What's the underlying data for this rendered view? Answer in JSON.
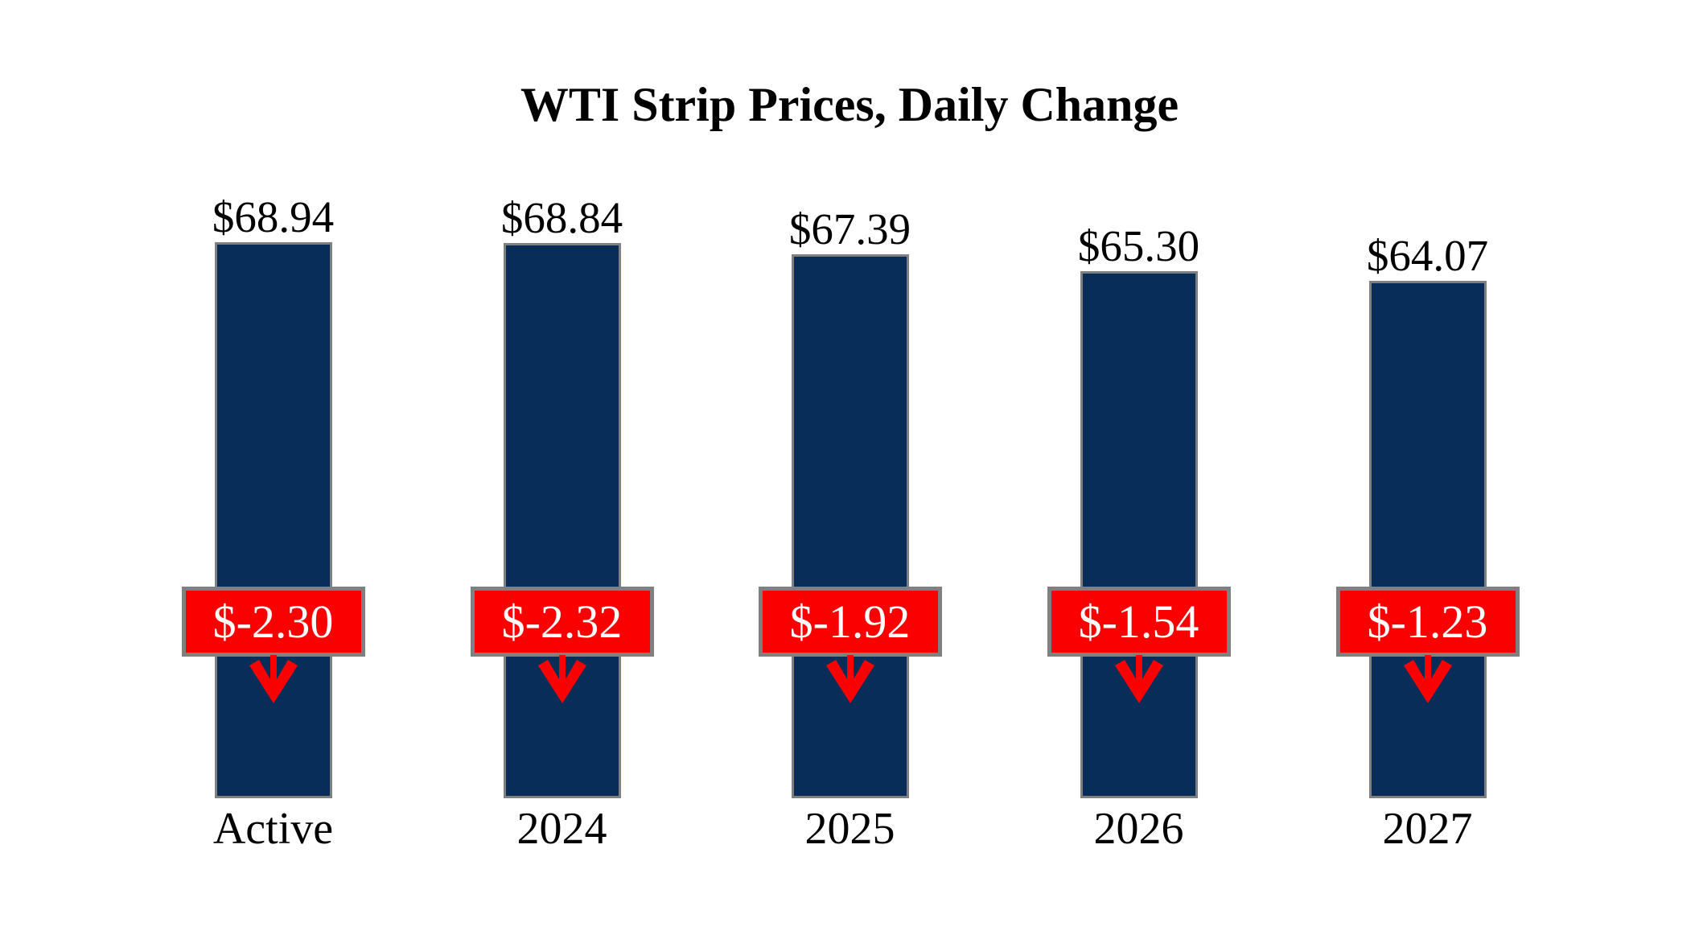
{
  "chart_data": {
    "type": "bar",
    "title": "WTI Strip Prices, Daily Change",
    "categories": [
      "Active",
      "2024",
      "2025",
      "2026",
      "2027"
    ],
    "series": [
      {
        "name": "WTI Strip Price",
        "values": [
          68.94,
          68.84,
          67.39,
          65.3,
          64.07
        ],
        "labels": [
          "$68.94",
          "$68.84",
          "$67.39",
          "$65.30",
          "$64.07"
        ]
      },
      {
        "name": "Daily Change",
        "values": [
          -2.3,
          -2.32,
          -1.92,
          -1.54,
          -1.23
        ],
        "labels": [
          "$-2.30",
          "$-2.32",
          "$-1.92",
          "$-1.54",
          "$-1.23"
        ]
      }
    ],
    "ylim": [
      0,
      72
    ],
    "grid": false,
    "legend_position": "none",
    "axes_visible": false,
    "bar_value_label_position": "above-bar",
    "change_label_position": "overlaid-badge-with-down-arrow"
  },
  "colors": {
    "background": "#FFFFFF",
    "title_text": "#000000",
    "label_text": "#000000",
    "bar_fill": "#082D58",
    "bar_border": "#808080",
    "change_badge_fill": "#FB0000",
    "change_badge_border": "#808080",
    "change_badge_text": "#FFFFFF",
    "arrow": "#FB0000"
  }
}
